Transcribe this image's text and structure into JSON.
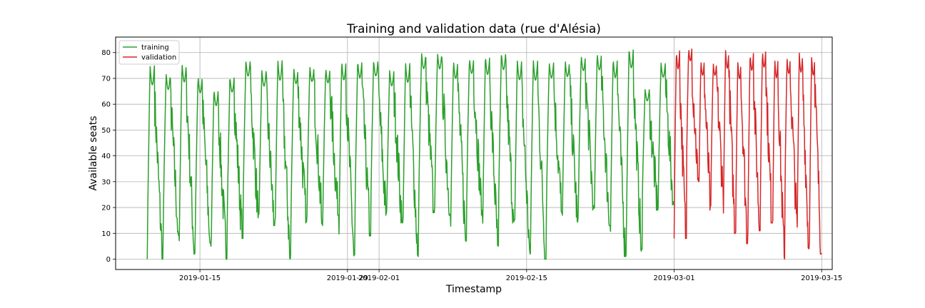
{
  "chart_data": {
    "type": "line",
    "title": "Training and validation data (rue d'Alésia)",
    "xlabel": "Timestamp",
    "ylabel": "Available seats",
    "x_range": [
      "2019-01-07",
      "2019-03-16"
    ],
    "ylim": [
      -4,
      86
    ],
    "x_ticks": [
      "2019-01-15",
      "2019-01-29",
      "2019-02-01",
      "2019-02-15",
      "2019-03-01",
      "2019-03-15"
    ],
    "y_ticks": [
      0,
      10,
      20,
      30,
      40,
      50,
      60,
      70,
      80
    ],
    "grid": true,
    "legend": "upper left",
    "series": [
      {
        "name": "training",
        "color": "#2ca02c",
        "start": "2019-01-10",
        "end": "2019-03-01",
        "daily_peaks": [
          75,
          72,
          76,
          71,
          66,
          71,
          77,
          73,
          77,
          74,
          75,
          74,
          77,
          77,
          77,
          73,
          76,
          80,
          80,
          77,
          78,
          79,
          80,
          77,
          77,
          76,
          77,
          79,
          80,
          78,
          82,
          66,
          76
        ],
        "daily_lows": [
          0,
          9,
          2,
          5,
          0,
          8,
          16,
          13,
          0,
          14,
          13,
          17,
          1,
          9,
          17,
          14,
          1,
          18,
          17,
          7,
          17,
          4,
          14,
          2,
          0,
          18,
          14,
          19,
          13,
          1,
          3,
          19,
          21
        ]
      },
      {
        "name": "validation",
        "color": "#d62728",
        "start": "2019-03-01",
        "end": "2019-03-15",
        "daily_peaks": [
          81,
          82,
          77,
          76,
          81,
          77,
          80,
          81,
          78,
          78,
          80,
          79
        ],
        "daily_lows": [
          8,
          30,
          19,
          28,
          10,
          6,
          11,
          14,
          0,
          17,
          4,
          2
        ]
      }
    ]
  }
}
